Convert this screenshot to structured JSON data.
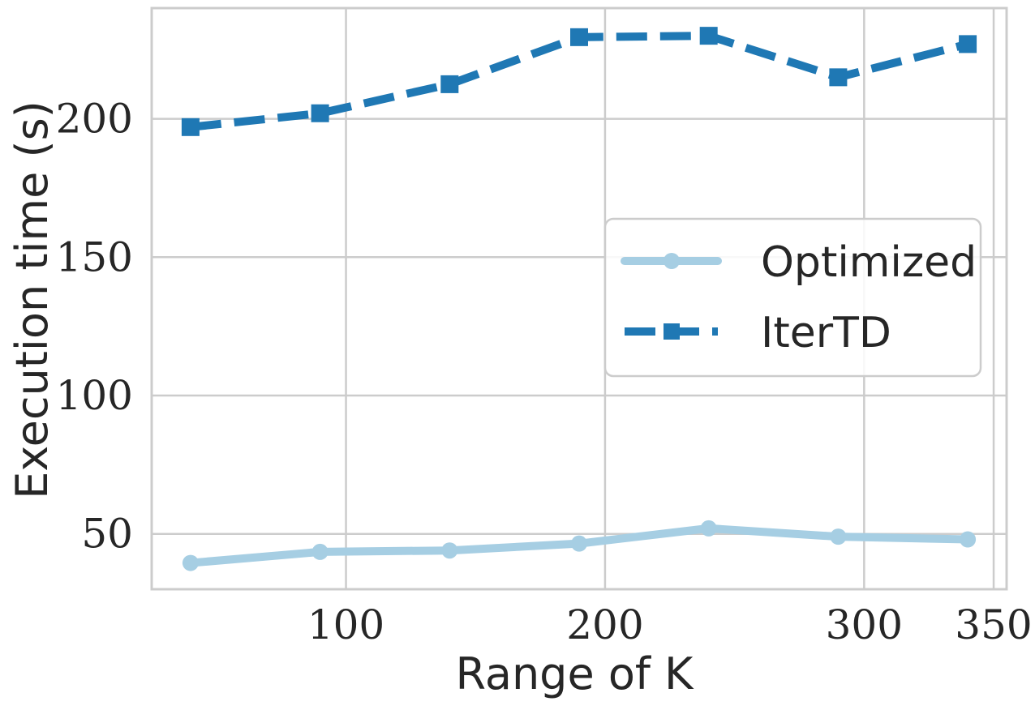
{
  "chart_data": {
    "type": "line",
    "xlabel": "Range of K",
    "ylabel": "Execution time (s)",
    "xlim": [
      25,
      355
    ],
    "ylim": [
      30,
      240
    ],
    "xticks": [
      100,
      200,
      300,
      350
    ],
    "yticks": [
      50,
      100,
      150,
      200
    ],
    "grid": true,
    "legend_position": "center-right",
    "x": [
      40,
      90,
      140,
      190,
      240,
      290,
      340
    ],
    "series": [
      {
        "name": "Optimized",
        "values": [
          39.5,
          43.5,
          44,
          46.5,
          52,
          49,
          48
        ],
        "color": "#a6cee3",
        "style": "solid",
        "marker": "circle"
      },
      {
        "name": "IterTD",
        "values": [
          197,
          202,
          212.5,
          229.5,
          230,
          215,
          227
        ],
        "color": "#1f78b4",
        "style": "dashed",
        "marker": "square"
      }
    ]
  }
}
